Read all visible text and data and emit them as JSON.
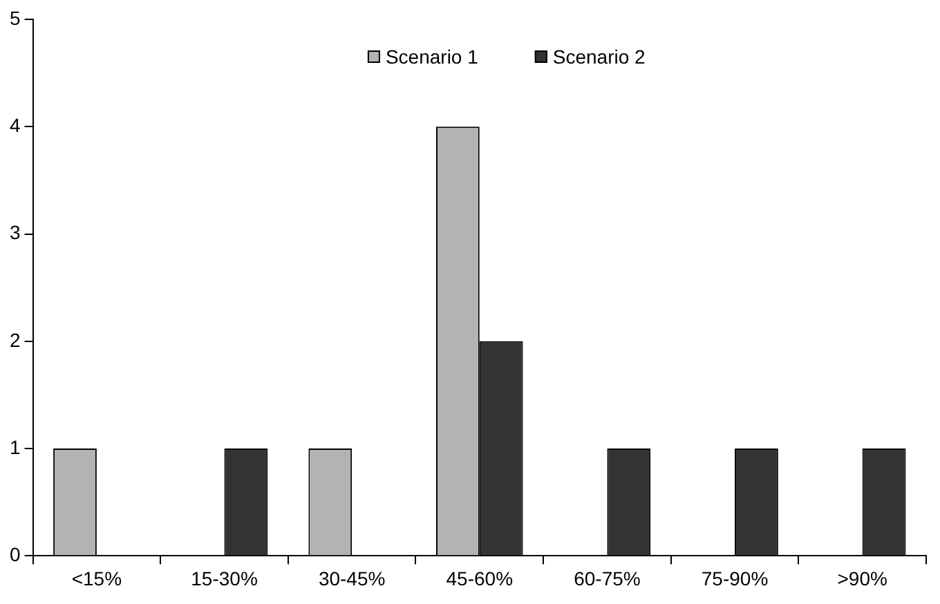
{
  "chart_data": {
    "type": "bar",
    "categories": [
      "<15%",
      "15-30%",
      "30-45%",
      "45-60%",
      "60-75%",
      "75-90%",
      ">90%"
    ],
    "series": [
      {
        "name": "Scenario 1",
        "color": "#b3b3b3",
        "values": [
          1,
          0,
          1,
          4,
          0,
          0,
          0
        ]
      },
      {
        "name": "Scenario 2",
        "color": "#333333",
        "values": [
          0,
          1,
          0,
          2,
          1,
          1,
          1
        ]
      }
    ],
    "ylim": [
      0,
      5
    ],
    "yticks": [
      0,
      1,
      2,
      3,
      4,
      5
    ],
    "grid": false,
    "legend": "top"
  }
}
